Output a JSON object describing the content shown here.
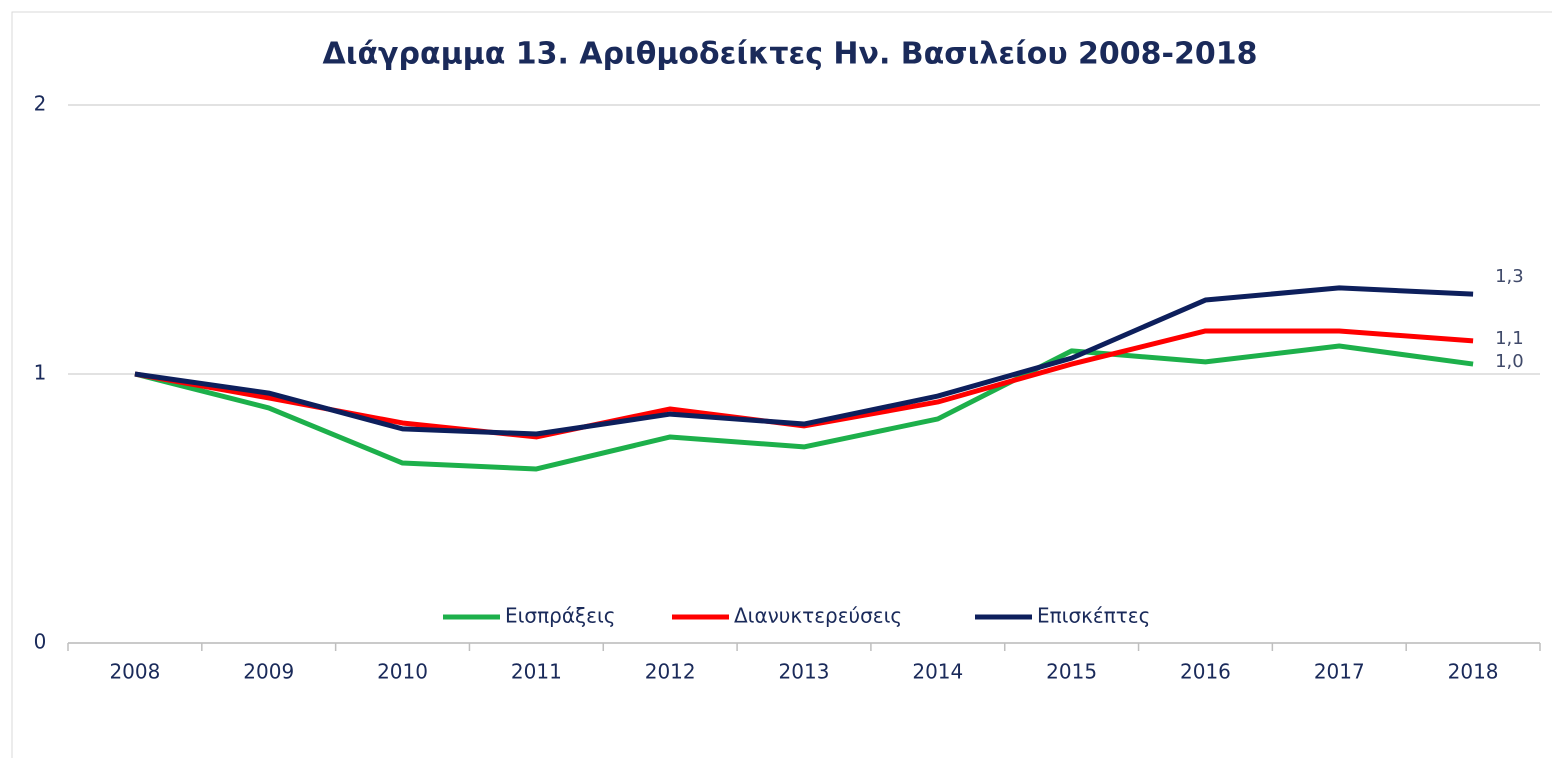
{
  "chart_data": {
    "type": "line",
    "title": "Διάγραμμα 13. Αριθμοδείκτες Ην. Βασιλείου 2008-2018",
    "categories": [
      "2008",
      "2009",
      "2010",
      "2011",
      "2012",
      "2013",
      "2014",
      "2015",
      "2016",
      "2017",
      "2018"
    ],
    "series": [
      {
        "name": "Εισπράξεις",
        "color": "#1db04b",
        "values": [
          1.0,
          0.874,
          0.669,
          0.647,
          0.766,
          0.729,
          0.833,
          1.086,
          1.045,
          1.104,
          1.037
        ],
        "value_labels": [
          null,
          null,
          null,
          null,
          null,
          null,
          null,
          null,
          null,
          null,
          "1,0"
        ]
      },
      {
        "name": "Διανυκτερεύσεις",
        "color": "#ff0000",
        "values": [
          1.0,
          0.911,
          0.818,
          0.766,
          0.87,
          0.807,
          0.896,
          1.037,
          1.16,
          1.16,
          1.123
        ],
        "value_labels": [
          null,
          null,
          null,
          null,
          null,
          null,
          null,
          null,
          null,
          null,
          "1,1"
        ]
      },
      {
        "name": "Επισκέπτες",
        "color": "#0d1f5c",
        "values": [
          1.0,
          0.929,
          0.796,
          0.777,
          0.851,
          0.814,
          0.918,
          1.059,
          1.275,
          1.32,
          1.297
        ],
        "value_labels": [
          null,
          null,
          null,
          null,
          null,
          null,
          null,
          null,
          null,
          null,
          "1,3"
        ]
      }
    ],
    "ylim": [
      0,
      2
    ],
    "yticks": [
      0,
      1,
      2
    ],
    "grid": true,
    "legend_position": "bottom"
  }
}
